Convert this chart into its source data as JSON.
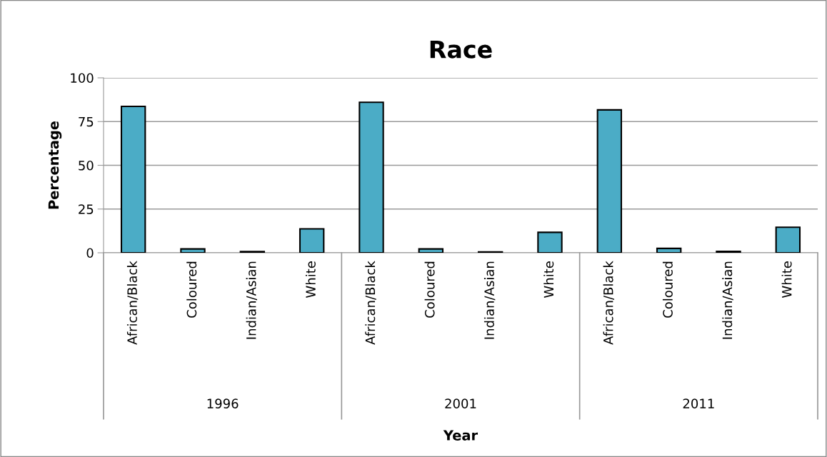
{
  "chart_data": {
    "type": "bar",
    "title": "Race",
    "ylabel": "Percentage",
    "categories": [
      "African/Black",
      "Coloured",
      "Indian/Asian",
      "White",
      "African/Black",
      "Coloured",
      "Indian/Asian",
      "White",
      "African/Black",
      "Coloured",
      "Indian/Asian",
      "White"
    ],
    "values": [
      83.7,
      2.2,
      0.7,
      13.7,
      86.0,
      2.2,
      0.5,
      11.7,
      81.7,
      2.5,
      0.8,
      14.6
    ],
    "color": "#4bacc6",
    "annotations": [
      "1996",
      "2001",
      "2011",
      "Year"
    ],
    "ylim": [
      0,
      100
    ],
    "yticks": [
      0,
      25,
      50,
      75,
      100
    ],
    "grid": "y",
    "legend": false
  }
}
